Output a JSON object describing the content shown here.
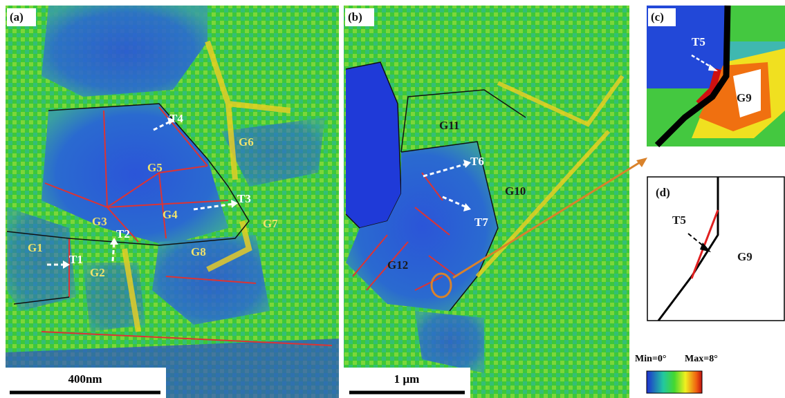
{
  "panels": [
    {
      "label": "(a)",
      "annotations": [
        "G1",
        "G2",
        "G3",
        "G4",
        "G5",
        "G6",
        "G7",
        "G8",
        "T1",
        "T2",
        "T3",
        "T4"
      ]
    },
    {
      "label": "(b)",
      "annotations": [
        "G11",
        "G10",
        "G12",
        "T6",
        "T7"
      ]
    },
    {
      "label": "(c)",
      "annotations": [
        "T5",
        "G9"
      ]
    },
    {
      "label": "(d)",
      "annotations": [
        "T5",
        "G9"
      ]
    }
  ],
  "scale_bars": [
    "400nm",
    "1 µm"
  ],
  "colorbar": {
    "min_label": "Min=0°",
    "max_label": "Max=8°"
  }
}
